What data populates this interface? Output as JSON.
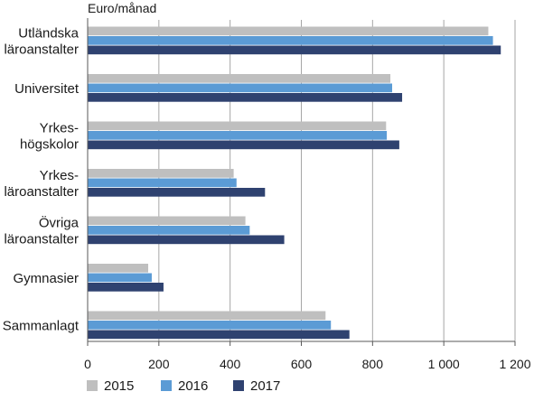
{
  "chart_data": {
    "type": "bar",
    "orientation": "horizontal",
    "unit_label": "Euro/månad",
    "categories": [
      [
        "Utländska",
        "läroanstalter"
      ],
      [
        "Universitet"
      ],
      [
        "Yrkes-",
        "högskolor"
      ],
      [
        "Yrkes-",
        "läroanstalter"
      ],
      [
        "Övriga",
        "läroanstalter"
      ],
      [
        "Gymnasier"
      ],
      [
        "Sammanlagt"
      ]
    ],
    "series": [
      {
        "name": "2015",
        "color": "#bfbfbf",
        "values": [
          1125,
          850,
          838,
          410,
          443,
          170,
          668
        ]
      },
      {
        "name": "2016",
        "color": "#5b9bd5",
        "values": [
          1138,
          855,
          840,
          418,
          455,
          180,
          683
        ]
      },
      {
        "name": "2017",
        "color": "#2f4270",
        "values": [
          1160,
          883,
          875,
          498,
          552,
          213,
          735
        ]
      }
    ],
    "xlim": [
      0,
      1200
    ],
    "xticks": [
      0,
      200,
      400,
      600,
      800,
      1000,
      1200
    ],
    "xtick_labels": [
      "0",
      "200",
      "400",
      "600",
      "800",
      "1 000",
      "1 200"
    ],
    "grid": true,
    "legend_position": "bottom"
  }
}
